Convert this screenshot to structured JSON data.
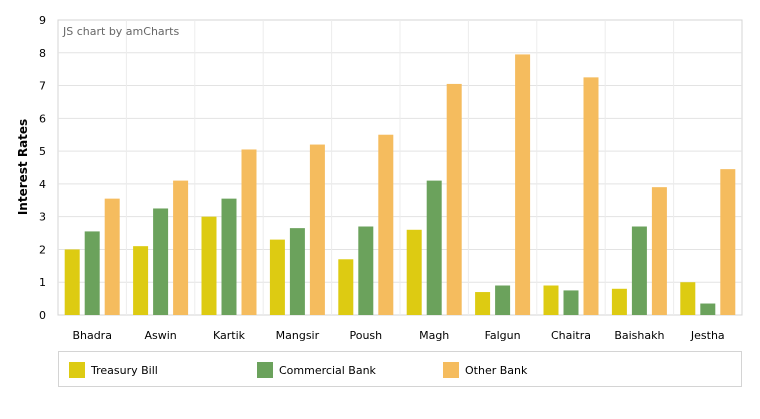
{
  "chart_data": {
    "type": "bar",
    "watermark": "JS chart by amCharts",
    "ylabel": "Interest Rates",
    "xlabel": "",
    "ylim": [
      0,
      9
    ],
    "yticks": [
      "0",
      "1",
      "2",
      "3",
      "4",
      "5",
      "6",
      "7",
      "8",
      "9"
    ],
    "grid": true,
    "legend_position": "bottom",
    "categories": [
      "Bhadra",
      "Aswin",
      "Kartik",
      "Mangsir",
      "Poush",
      "Magh",
      "Falgun",
      "Chaitra",
      "Baishakh",
      "Jestha"
    ],
    "series": [
      {
        "name": "Treasury Bill",
        "color": "#ddcb12",
        "values": [
          2.0,
          2.1,
          3.0,
          2.3,
          1.7,
          2.6,
          0.7,
          0.9,
          0.8,
          1.0
        ]
      },
      {
        "name": "Commercial Bank",
        "color": "#6ba25c",
        "values": [
          2.55,
          3.25,
          3.55,
          2.65,
          2.7,
          4.1,
          0.9,
          0.75,
          2.7,
          0.35
        ]
      },
      {
        "name": "Other Bank",
        "color": "#f5bc5e",
        "values": [
          3.55,
          4.1,
          5.05,
          5.2,
          5.5,
          7.05,
          7.95,
          7.25,
          3.9,
          4.45
        ]
      }
    ]
  }
}
